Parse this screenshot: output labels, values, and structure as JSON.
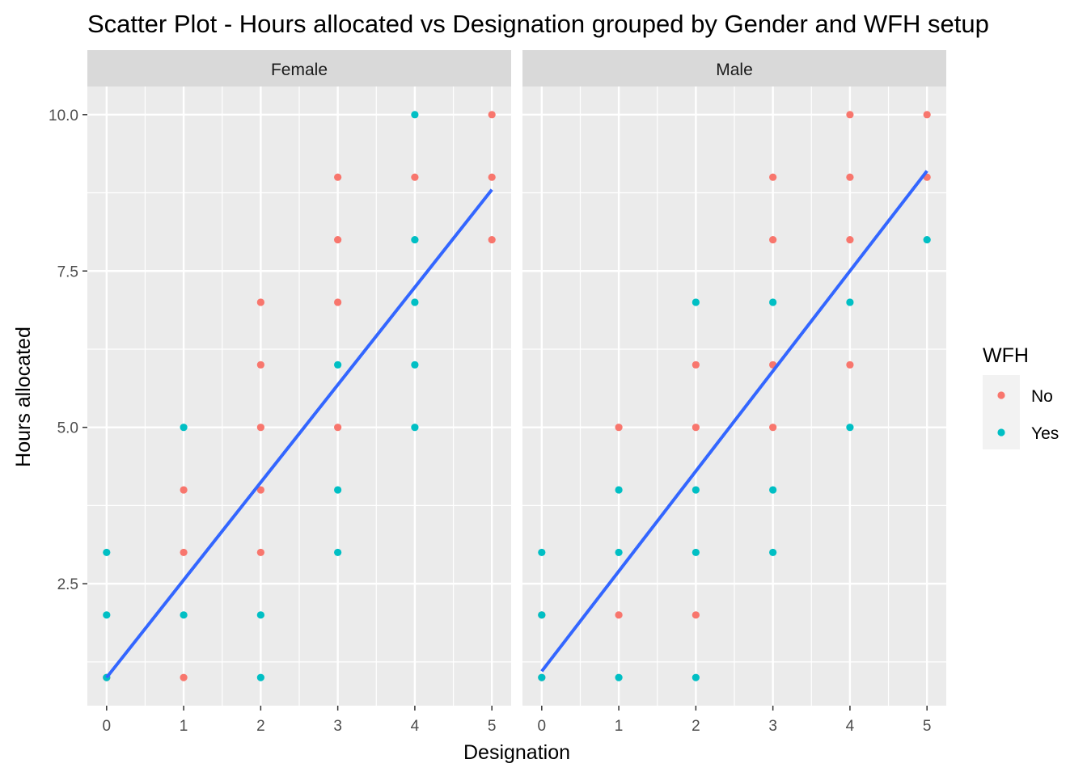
{
  "chart_data": {
    "type": "scatter",
    "title": "Scatter Plot - Hours allocated vs Designation grouped by Gender and WFH setup",
    "xlabel": "Designation",
    "ylabel": "Hours allocated",
    "xlim": [
      -0.25,
      5.25
    ],
    "ylim": [
      0.55,
      10.45
    ],
    "x_ticks": [
      0,
      1,
      2,
      3,
      4,
      5
    ],
    "x_tick_labels": [
      "0",
      "1",
      "2",
      "3",
      "4",
      "5"
    ],
    "y_ticks": [
      2.5,
      5.0,
      7.5,
      10.0
    ],
    "y_tick_labels": [
      "2.5",
      "5.0",
      "7.5",
      "10.0"
    ],
    "grid": true,
    "legend": {
      "title": "WFH",
      "placement": "right",
      "entries": [
        {
          "label": "No",
          "color": "#F8766D"
        },
        {
          "label": "Yes",
          "color": "#00BFC4"
        }
      ]
    },
    "colors": {
      "No": "#F8766D",
      "Yes": "#00BFC4",
      "trend": "#3366FF",
      "panel_bg": "#EBEBEB",
      "strip_bg": "#D9D9D9"
    },
    "facets": [
      {
        "label": "Female",
        "trend_line": {
          "x": [
            0,
            5
          ],
          "y": [
            1.0,
            8.8
          ]
        },
        "series": [
          {
            "name": "No",
            "points": [
              [
                0,
                1
              ],
              [
                1,
                1
              ],
              [
                1,
                3
              ],
              [
                1,
                4
              ],
              [
                2,
                3
              ],
              [
                2,
                4
              ],
              [
                2,
                5
              ],
              [
                2,
                6
              ],
              [
                2,
                7
              ],
              [
                3,
                5
              ],
              [
                3,
                7
              ],
              [
                3,
                8
              ],
              [
                3,
                9
              ],
              [
                4,
                9
              ],
              [
                5,
                8
              ],
              [
                5,
                9
              ],
              [
                5,
                10
              ]
            ]
          },
          {
            "name": "Yes",
            "points": [
              [
                0,
                1
              ],
              [
                0,
                2
              ],
              [
                0,
                3
              ],
              [
                1,
                2
              ],
              [
                1,
                5
              ],
              [
                2,
                1
              ],
              [
                2,
                2
              ],
              [
                3,
                3
              ],
              [
                3,
                4
              ],
              [
                3,
                6
              ],
              [
                4,
                5
              ],
              [
                4,
                6
              ],
              [
                4,
                7
              ],
              [
                4,
                8
              ],
              [
                4,
                10
              ]
            ]
          }
        ]
      },
      {
        "label": "Male",
        "trend_line": {
          "x": [
            0,
            5
          ],
          "y": [
            1.1,
            9.1
          ]
        },
        "series": [
          {
            "name": "No",
            "points": [
              [
                0,
                1
              ],
              [
                0,
                2
              ],
              [
                1,
                2
              ],
              [
                1,
                5
              ],
              [
                2,
                2
              ],
              [
                2,
                5
              ],
              [
                2,
                6
              ],
              [
                3,
                5
              ],
              [
                3,
                6
              ],
              [
                3,
                8
              ],
              [
                3,
                9
              ],
              [
                4,
                6
              ],
              [
                4,
                8
              ],
              [
                4,
                9
              ],
              [
                4,
                10
              ],
              [
                5,
                9
              ],
              [
                5,
                10
              ]
            ]
          },
          {
            "name": "Yes",
            "points": [
              [
                0,
                1
              ],
              [
                0,
                2
              ],
              [
                0,
                3
              ],
              [
                1,
                1
              ],
              [
                1,
                3
              ],
              [
                1,
                4
              ],
              [
                2,
                1
              ],
              [
                2,
                3
              ],
              [
                2,
                4
              ],
              [
                2,
                7
              ],
              [
                3,
                3
              ],
              [
                3,
                4
              ],
              [
                3,
                7
              ],
              [
                4,
                5
              ],
              [
                4,
                7
              ],
              [
                5,
                8
              ]
            ]
          }
        ]
      }
    ]
  }
}
